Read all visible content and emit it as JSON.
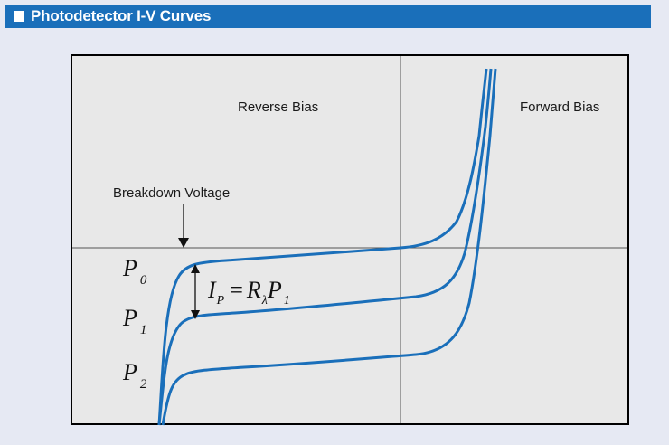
{
  "header": {
    "title": "Photodetector I-V Curves"
  },
  "diagram": {
    "region_left_label": "Reverse Bias",
    "region_right_label": "Forward Bias",
    "breakdown_label": "Breakdown Voltage",
    "curve_labels": [
      {
        "base": "P",
        "sub": "0"
      },
      {
        "base": "P",
        "sub": "1"
      },
      {
        "base": "P",
        "sub": "2"
      }
    ],
    "equation": {
      "i": "I",
      "i_sub": "P",
      "eq": "=",
      "r": "R",
      "r_sub": "λ",
      "p": "P",
      "p_sub": "1"
    },
    "colors": {
      "curve": "#1a6fba",
      "header": "#1a6fba",
      "plot_background": "#e8e8e8",
      "page_background": "#e6e9f3"
    }
  }
}
